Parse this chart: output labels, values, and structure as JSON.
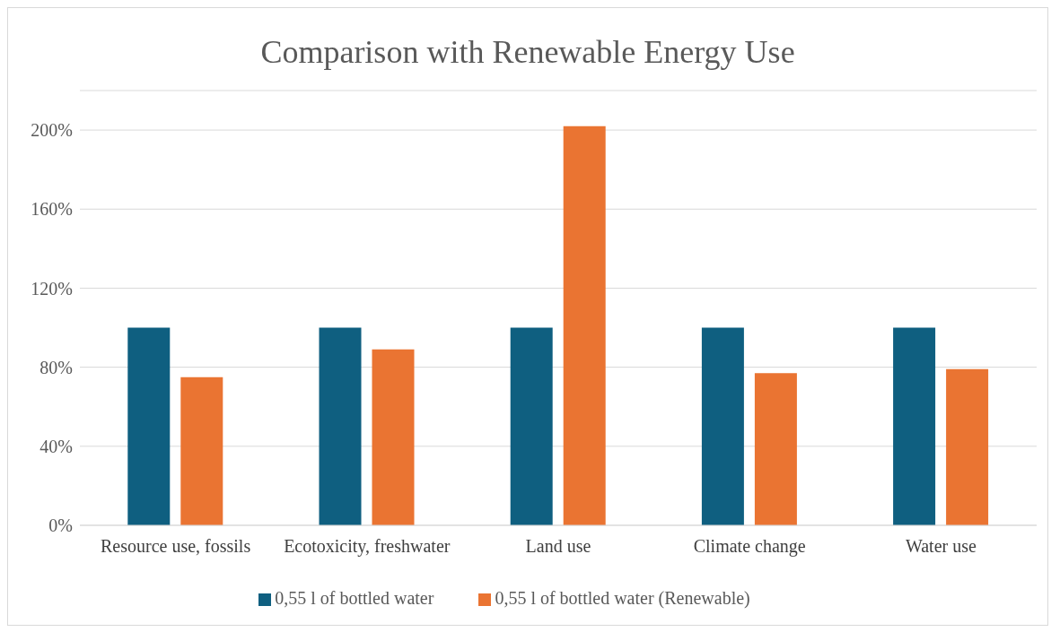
{
  "chart_data": {
    "type": "bar",
    "title": "Comparison with Renewable Energy Use",
    "categories": [
      "Resource use, fossils",
      "Ecotoxicity, freshwater",
      "Land use",
      "Climate change",
      "Water use"
    ],
    "series": [
      {
        "name": "0,55 l of bottled water",
        "color": "#0f5f80",
        "values": [
          100,
          100,
          100,
          100,
          100
        ]
      },
      {
        "name": "0,55 l of bottled water (Renewable)",
        "color": "#ea7432",
        "values": [
          75,
          89,
          202,
          77,
          79
        ]
      }
    ],
    "ylim": [
      0,
      220
    ],
    "yticks": [
      {
        "value": 0,
        "label": "0%"
      },
      {
        "value": 40,
        "label": "40%"
      },
      {
        "value": 80,
        "label": "80%"
      },
      {
        "value": 120,
        "label": "120%"
      },
      {
        "value": 160,
        "label": "160%"
      },
      {
        "value": 200,
        "label": "200%"
      }
    ],
    "grid": "y",
    "legend": "bottom"
  }
}
